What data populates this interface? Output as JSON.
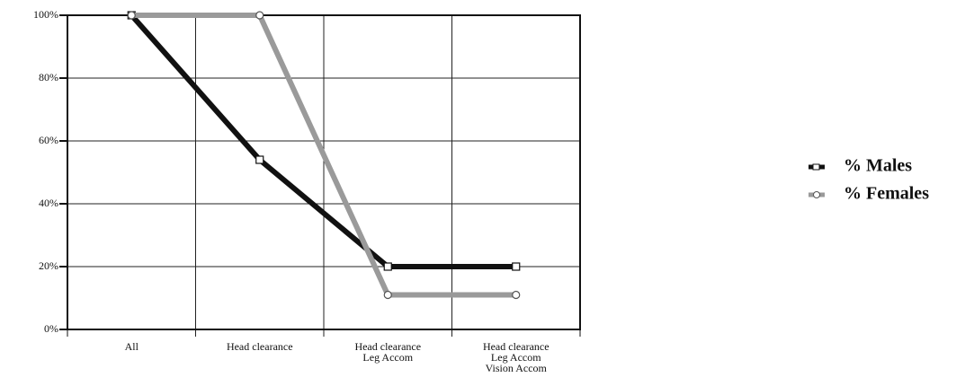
{
  "chart_data": {
    "type": "line",
    "categories": [
      [
        "All"
      ],
      [
        "Head clearance"
      ],
      [
        "Head clearance",
        "Leg Accom"
      ],
      [
        "Head clearance",
        "Leg Accom",
        "Vision Accom"
      ]
    ],
    "series": [
      {
        "name": "% Males",
        "color": "#111111",
        "values": [
          100,
          54,
          20,
          20
        ]
      },
      {
        "name": "% Females",
        "color": "#9a9a9a",
        "values": [
          100,
          100,
          11,
          11
        ]
      }
    ],
    "ylim": [
      0,
      100
    ],
    "yticks": [
      {
        "value": 0,
        "label": "0%"
      },
      {
        "value": 20,
        "label": "20%"
      },
      {
        "value": 40,
        "label": "40%"
      },
      {
        "value": 60,
        "label": "60%"
      },
      {
        "value": 80,
        "label": "80%"
      },
      {
        "value": 100,
        "label": "100%"
      }
    ],
    "grid": true,
    "legend": "right"
  }
}
